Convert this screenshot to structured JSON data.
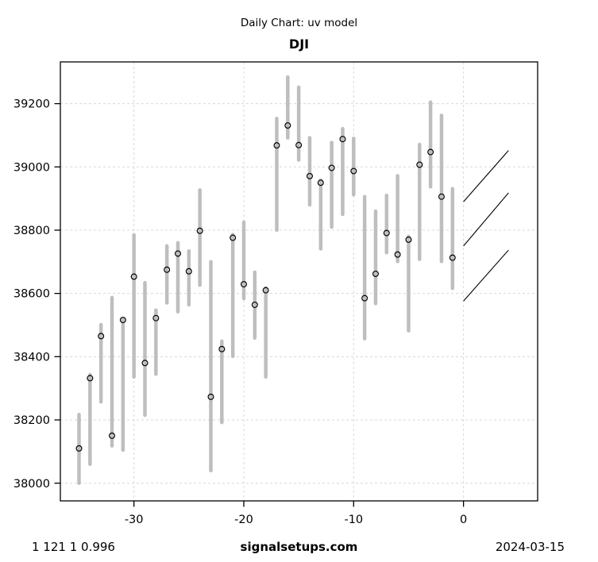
{
  "header": {
    "title": "Daily Chart: uv model",
    "symbol": "DJI"
  },
  "footer": {
    "left": "1 121 1 0.996",
    "center": "signalsetups.com",
    "right": "2024-03-15"
  },
  "colors": {
    "background": "#ffffff",
    "bar": "#bebebe",
    "close_marker": "#000000",
    "grid": "#d8d8d8",
    "frame": "#000000",
    "forecast_line": "#000000",
    "text": "#000000"
  },
  "chart_data": {
    "type": "bar",
    "subtype": "high-low-range-with-close-markers",
    "title": "DJI",
    "supertitle": "Daily Chart: uv model",
    "xlabel": "",
    "ylabel": "",
    "grid": true,
    "x_ticks": [
      -30,
      -20,
      -10,
      0
    ],
    "y_ticks": [
      38000,
      38200,
      38400,
      38600,
      38800,
      39000,
      39200
    ],
    "xlim": [
      -36.7,
      6.75
    ],
    "ylim": [
      37944,
      39332
    ],
    "bars": {
      "columns": [
        "day",
        "high",
        "low",
        "close"
      ],
      "rows": [
        [
          -35,
          38217,
          38000,
          38110
        ],
        [
          -34,
          38343,
          38060,
          38332
        ],
        [
          -33,
          38501,
          38257,
          38465
        ],
        [
          -32,
          38587,
          38118,
          38150
        ],
        [
          -31,
          38518,
          38105,
          38516
        ],
        [
          -30,
          38785,
          38336,
          38653
        ],
        [
          -29,
          38634,
          38215,
          38380
        ],
        [
          -28,
          38547,
          38345,
          38522
        ],
        [
          -27,
          38750,
          38570,
          38675
        ],
        [
          -26,
          38760,
          38542,
          38726
        ],
        [
          -25,
          38734,
          38564,
          38670
        ],
        [
          -24,
          38927,
          38626,
          38798
        ],
        [
          -23,
          38700,
          38040,
          38273
        ],
        [
          -22,
          38449,
          38192,
          38424
        ],
        [
          -21,
          38786,
          38401,
          38776
        ],
        [
          -20,
          38825,
          38584,
          38629
        ],
        [
          -19,
          38667,
          38459,
          38564
        ],
        [
          -18,
          38617,
          38336,
          38610
        ],
        [
          -17,
          39153,
          38800,
          39068
        ],
        [
          -16,
          39284,
          39092,
          39131
        ],
        [
          -15,
          39252,
          39022,
          39069
        ],
        [
          -14,
          39092,
          38880,
          38971
        ],
        [
          -13,
          38958,
          38741,
          38950
        ],
        [
          -12,
          39077,
          38810,
          38997
        ],
        [
          -11,
          39121,
          38850,
          39088
        ],
        [
          -10,
          39090,
          38912,
          38987
        ],
        [
          -9,
          38906,
          38457,
          38585
        ],
        [
          -8,
          38860,
          38568,
          38662
        ],
        [
          -7,
          38910,
          38729,
          38791
        ],
        [
          -6,
          38972,
          38701,
          38723
        ],
        [
          -5,
          38780,
          38482,
          38770
        ],
        [
          -4,
          39071,
          38708,
          39007
        ],
        [
          -3,
          39205,
          38937,
          39047
        ],
        [
          -2,
          39163,
          38701,
          38906
        ],
        [
          -1,
          38931,
          38616,
          38713
        ]
      ]
    },
    "forecast_lines": [
      {
        "from_day": 0,
        "from_value": 38890,
        "to_day": 4.1,
        "to_value": 39052
      },
      {
        "from_day": 0,
        "from_value": 38750,
        "to_day": 4.1,
        "to_value": 38918
      },
      {
        "from_day": 0,
        "from_value": 38576,
        "to_day": 4.1,
        "to_value": 38737
      }
    ]
  }
}
